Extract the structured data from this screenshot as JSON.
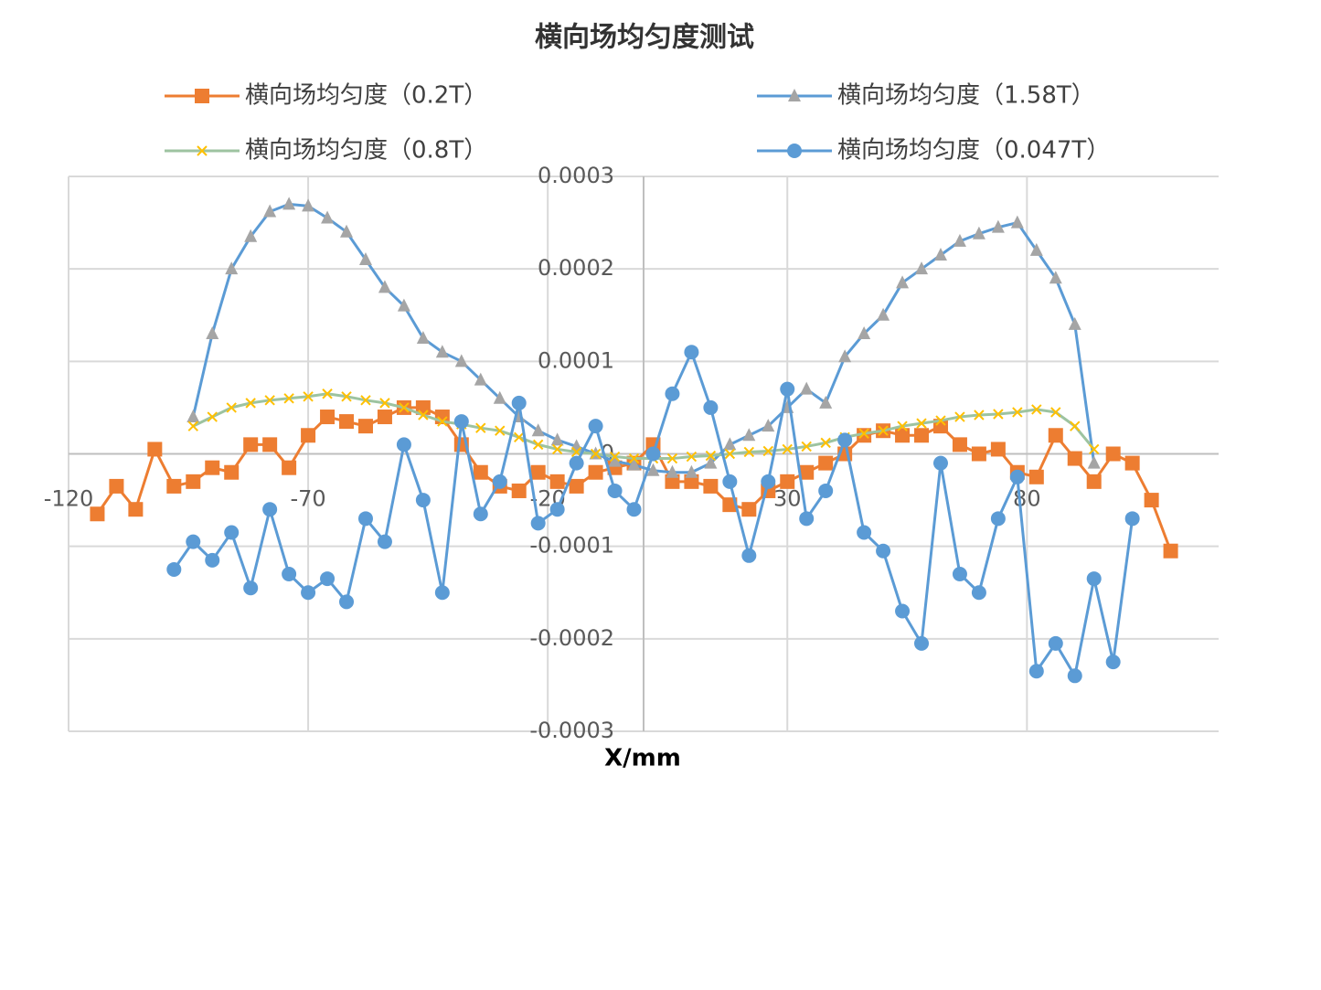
{
  "chart_data": {
    "type": "line",
    "title": "横向场均匀度测试",
    "x_label": "X/mm",
    "xlim": [
      -120,
      120
    ],
    "xticks": [
      -120,
      -70,
      -20,
      30,
      80
    ],
    "ylim": [
      -0.0003,
      0.0003
    ],
    "yticks": [
      0.0003,
      0.0002,
      0.0001,
      0,
      -0.0001,
      -0.0002,
      -0.0003
    ],
    "grid": true,
    "x": [
      -114,
      -110,
      -106,
      -102,
      -98,
      -94,
      -90,
      -86,
      -82,
      -78,
      -74,
      -70,
      -66,
      -62,
      -58,
      -54,
      -50,
      -46,
      -42,
      -38,
      -34,
      -30,
      -26,
      -22,
      -18,
      -14,
      -10,
      -6,
      -2,
      2,
      6,
      10,
      14,
      18,
      22,
      26,
      30,
      34,
      38,
      42,
      46,
      50,
      54,
      58,
      62,
      66,
      70,
      74,
      78,
      82,
      86,
      90,
      94,
      98,
      102,
      106,
      110
    ],
    "series": [
      {
        "name": "横向场均匀度（0.2T）",
        "color": "#ed7d31",
        "line_color": "#ed7d31",
        "marker": "square",
        "values": [
          -6.5e-05,
          -3.5e-05,
          -6e-05,
          5e-06,
          -3.5e-05,
          -3e-05,
          -1.5e-05,
          -2e-05,
          1e-05,
          1e-05,
          -1.5e-05,
          2e-05,
          4e-05,
          3.5e-05,
          3e-05,
          4e-05,
          5e-05,
          5e-05,
          4e-05,
          1e-05,
          -2e-05,
          -3.5e-05,
          -4e-05,
          -2e-05,
          -3e-05,
          -3.5e-05,
          -2e-05,
          -1.5e-05,
          -1e-05,
          1e-05,
          -3e-05,
          -3e-05,
          -3.5e-05,
          -5.5e-05,
          -6e-05,
          -4e-05,
          -3e-05,
          -2e-05,
          -1e-05,
          0,
          2e-05,
          2.5e-05,
          2e-05,
          2e-05,
          3e-05,
          1e-05,
          0,
          5e-06,
          -2e-05,
          -2.5e-05,
          2e-05,
          -5e-06,
          -3e-05,
          0,
          -1e-05,
          -5e-05,
          -0.000105
        ]
      },
      {
        "name": "横向场均匀度（1.58T）",
        "color": "#a5a5a5",
        "line_color": "#5b9bd5",
        "marker": "triangle",
        "values": [
          null,
          null,
          null,
          null,
          null,
          4e-05,
          0.00013,
          0.0002,
          0.000235,
          0.000262,
          0.00027,
          0.000268,
          0.000255,
          0.00024,
          0.00021,
          0.00018,
          0.00016,
          0.000125,
          0.00011,
          0.0001,
          8e-05,
          6e-05,
          4e-05,
          2.5e-05,
          1.5e-05,
          8e-06,
          0,
          -8e-06,
          -1.2e-05,
          -1.8e-05,
          -2e-05,
          -2e-05,
          -1e-05,
          1e-05,
          2e-05,
          3e-05,
          5e-05,
          7e-05,
          5.5e-05,
          0.000105,
          0.00013,
          0.00015,
          0.000185,
          0.0002,
          0.000215,
          0.00023,
          0.000238,
          0.000245,
          0.00025,
          0.00022,
          0.00019,
          0.00014,
          -1e-05,
          null,
          null,
          null,
          null
        ]
      },
      {
        "name": "横向场均匀度（0.8T）",
        "color": "#ffc000",
        "line_color": "#9dc3a0",
        "marker": "x",
        "values": [
          null,
          null,
          null,
          null,
          null,
          3e-05,
          4e-05,
          5e-05,
          5.5e-05,
          5.8e-05,
          6e-05,
          6.2e-05,
          6.5e-05,
          6.2e-05,
          5.8e-05,
          5.5e-05,
          5e-05,
          4.2e-05,
          3.5e-05,
          3.2e-05,
          2.8e-05,
          2.5e-05,
          1.8e-05,
          1e-05,
          5e-06,
          2e-06,
          0,
          -3e-06,
          -5e-06,
          -5e-06,
          -5e-06,
          -3e-06,
          -2e-06,
          0,
          2e-06,
          3e-06,
          5e-06,
          8e-06,
          1.2e-05,
          1.8e-05,
          2.2e-05,
          2.5e-05,
          3e-05,
          3.3e-05,
          3.6e-05,
          4e-05,
          4.2e-05,
          4.3e-05,
          4.5e-05,
          4.8e-05,
          4.5e-05,
          3e-05,
          5e-06,
          null,
          null,
          null,
          null
        ]
      },
      {
        "name": "横向场均匀度（0.047T）",
        "color": "#5b9bd5",
        "line_color": "#5b9bd5",
        "marker": "circle",
        "values": [
          null,
          null,
          null,
          null,
          -0.000125,
          -9.5e-05,
          -0.000115,
          -8.5e-05,
          -0.000145,
          -6e-05,
          -0.00013,
          -0.00015,
          -0.000135,
          -0.00016,
          -7e-05,
          -9.5e-05,
          1e-05,
          -5e-05,
          -0.00015,
          3.5e-05,
          -6.5e-05,
          -3e-05,
          5.5e-05,
          -7.5e-05,
          -6e-05,
          -1e-05,
          3e-05,
          -4e-05,
          -6e-05,
          0,
          6.5e-05,
          0.00011,
          5e-05,
          -3e-05,
          -0.00011,
          -3e-05,
          7e-05,
          -7e-05,
          -4e-05,
          1.5e-05,
          -8.5e-05,
          -0.000105,
          -0.00017,
          -0.000205,
          -1e-05,
          -0.00013,
          -0.00015,
          -7e-05,
          -2.5e-05,
          -0.000235,
          -0.000205,
          -0.00024,
          -0.000135,
          -0.000225,
          -7e-05,
          null,
          null
        ]
      }
    ]
  }
}
